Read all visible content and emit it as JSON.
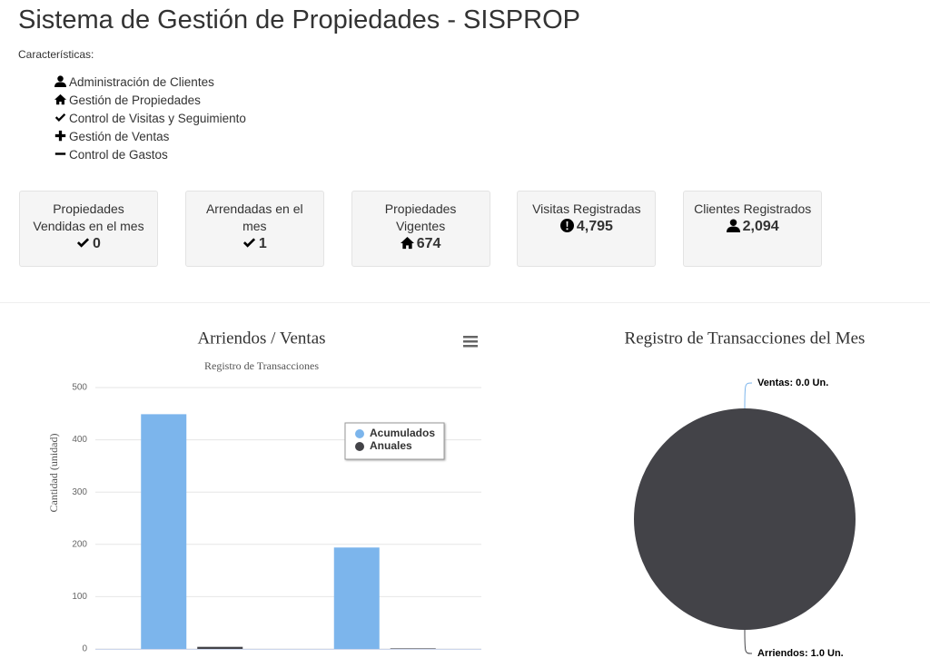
{
  "header": {
    "title": "Sistema de Gestión de Propiedades - SISPROP",
    "subtitle": "Características:"
  },
  "features": [
    "Administración de Clientes",
    "Gestión de Propiedades",
    "Control de Visitas y Seguimiento",
    "Gestión de Ventas",
    "Control de Gastos"
  ],
  "cards": [
    {
      "label": "Propiedades Vendidas en el mes",
      "value": "0"
    },
    {
      "label": "Arrendadas en el mes",
      "value": "1"
    },
    {
      "label": "Propiedades Vigentes",
      "value": "674"
    },
    {
      "label": "Visitas Registradas",
      "value": "4,795"
    },
    {
      "label": "Clientes Registrados",
      "value": "2,094"
    }
  ],
  "chart_data": [
    {
      "type": "bar",
      "title": "Arriendos / Ventas",
      "subtitle": "Registro de Transacciones",
      "y_label": "Cantidad (unidad)",
      "categories": [
        null,
        null
      ],
      "series": [
        {
          "name": "Acumulados",
          "color": "#7cb5ec",
          "values": [
            449,
            194
          ]
        },
        {
          "name": "Anuales",
          "color": "#434348",
          "values": [
            4,
            1
          ]
        }
      ],
      "ylim": [
        0,
        500
      ],
      "yticks": [
        0,
        100,
        200,
        300,
        400,
        500
      ],
      "grid": true,
      "legend": "top-right"
    },
    {
      "type": "pie",
      "title": "Registro de Transacciones del Mes",
      "categories": [
        "Ventas",
        "Arriendos"
      ],
      "values": [
        0,
        1
      ],
      "value_labels": [
        "Ventas: 0.0 Un.",
        "Arriendos: 1.0 Un."
      ],
      "colors": [
        "#7cb5ec",
        "#434348"
      ]
    }
  ]
}
